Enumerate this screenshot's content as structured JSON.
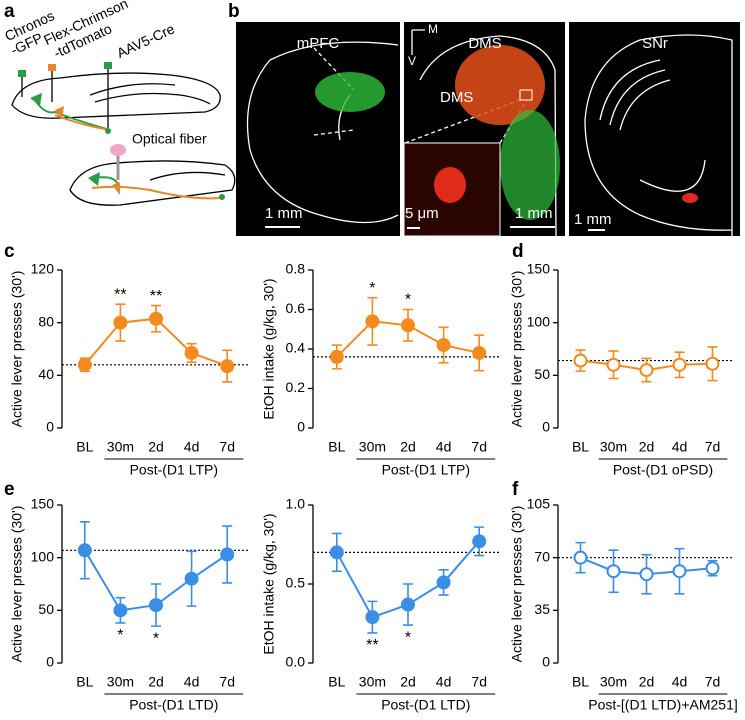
{
  "figure": {
    "panel_labels": [
      "a",
      "b",
      "c",
      "d",
      "e",
      "f"
    ],
    "schematic": {
      "chronos": [
        "Chronos",
        "-GFP"
      ],
      "chrimson": [
        "Flex-Chrimson",
        "-tdTomato"
      ],
      "cre": "AAV5-Cre",
      "fiber": "Optical fiber"
    },
    "images": {
      "titles": [
        "mPFC",
        "DMS",
        "SNr"
      ],
      "orientation": [
        "M",
        "V"
      ],
      "region_label": "DMS",
      "scale_bars": [
        "1 mm",
        "5 μm",
        "1 mm",
        "1 mm"
      ]
    }
  },
  "chart_data": [
    {
      "type": "line",
      "ylabel": "Active lever presses (30')",
      "xlabel": "Post-(D1 LTP)",
      "categories": [
        "BL",
        "30m",
        "2d",
        "4d",
        "7d"
      ],
      "values": [
        48,
        80,
        83,
        57,
        47
      ],
      "errors": [
        5,
        14,
        10,
        7,
        12
      ],
      "color": "#f28a1e",
      "marker": "filled",
      "baseline": true,
      "significance": [
        null,
        "**",
        "**",
        null,
        null
      ],
      "significance_position": "above",
      "ylim": [
        0,
        120
      ],
      "yticks": [
        0,
        40,
        80,
        120
      ]
    },
    {
      "type": "line",
      "ylabel": "EtOH intake (g/kg, 30')",
      "xlabel": "Post-(D1 LTP)",
      "categories": [
        "BL",
        "30m",
        "2d",
        "4d",
        "7d"
      ],
      "values": [
        0.36,
        0.54,
        0.52,
        0.42,
        0.38
      ],
      "errors": [
        0.06,
        0.12,
        0.08,
        0.09,
        0.09
      ],
      "color": "#f28a1e",
      "marker": "filled",
      "baseline": true,
      "significance": [
        null,
        "*",
        "*",
        null,
        null
      ],
      "significance_position": "above",
      "ylim": [
        0,
        0.8
      ],
      "yticks": [
        0,
        0.2,
        0.4,
        0.6,
        0.8
      ]
    },
    {
      "type": "line",
      "ylabel": "Active lever presses (30')",
      "xlabel": "Post-(D1 oPSD)",
      "categories": [
        "BL",
        "30m",
        "2d",
        "4d",
        "7d"
      ],
      "values": [
        64,
        60,
        55,
        60,
        61
      ],
      "errors": [
        10,
        13,
        11,
        12,
        16
      ],
      "color": "#f28a1e",
      "marker": "open",
      "baseline": true,
      "ylim": [
        0,
        150
      ],
      "yticks": [
        0,
        50,
        100,
        150
      ]
    },
    {
      "type": "line",
      "ylabel": "Active lever presses (30')",
      "xlabel": "Post-(D1 LTD)",
      "categories": [
        "BL",
        "30m",
        "2d",
        "4d",
        "7d"
      ],
      "values": [
        107,
        50,
        55,
        80,
        103
      ],
      "errors": [
        27,
        12,
        20,
        26,
        27
      ],
      "color": "#3a8ee6",
      "marker": "filled",
      "baseline": true,
      "significance": [
        null,
        "*",
        "*",
        null,
        null
      ],
      "significance_position": "below",
      "ylim": [
        0,
        150
      ],
      "yticks": [
        0,
        50,
        100,
        150
      ]
    },
    {
      "type": "line",
      "ylabel": "EtOH intake (g/kg, 30')",
      "xlabel": "Post-(D1 LTD)",
      "categories": [
        "BL",
        "30m",
        "2d",
        "4d",
        "7d"
      ],
      "values": [
        0.7,
        0.29,
        0.37,
        0.51,
        0.77
      ],
      "errors": [
        0.12,
        0.1,
        0.13,
        0.08,
        0.09
      ],
      "color": "#3a8ee6",
      "marker": "filled",
      "baseline": true,
      "significance": [
        null,
        "**",
        "*",
        null,
        null
      ],
      "significance_position": "below",
      "ylim": [
        0,
        1.0
      ],
      "yticks": [
        {
          "value": 0,
          "label": "0.0"
        },
        {
          "value": 0.5,
          "label": "0.5"
        },
        {
          "value": 1.0,
          "label": "1.0"
        }
      ]
    },
    {
      "type": "line",
      "ylabel": "Active lever presses (30')",
      "xlabel": "Post-[(D1 LTD)+AM251]",
      "categories": [
        "BL",
        "30m",
        "2d",
        "4d",
        "7d"
      ],
      "values": [
        70,
        61,
        59,
        61,
        63
      ],
      "errors": [
        10,
        14,
        13,
        15,
        5
      ],
      "color": "#3a8ee6",
      "marker": "open",
      "baseline": true,
      "ylim": [
        0,
        105
      ],
      "yticks": [
        0,
        35,
        70,
        105
      ]
    }
  ]
}
